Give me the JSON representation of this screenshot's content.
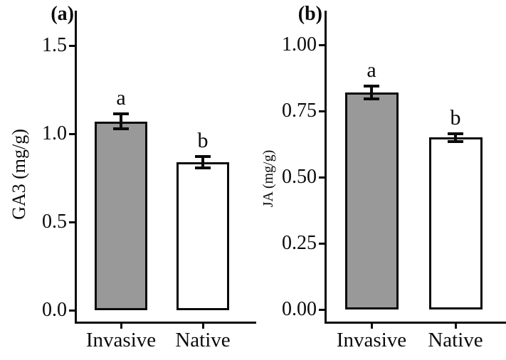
{
  "figure": {
    "background": "#ffffff",
    "line_color": "#0a0a0a"
  },
  "chart_data": [
    {
      "type": "bar",
      "panel_label": "(a)",
      "ylabel": "GA3 (mg/g)",
      "xlabel": "",
      "categories": [
        "Invasive",
        "Native"
      ],
      "values": [
        1.07,
        0.84
      ],
      "errors": [
        0.05,
        0.04
      ],
      "sig_letters": [
        "a",
        "b"
      ],
      "yticks": [
        0.0,
        0.5,
        1.0,
        1.5
      ],
      "ytick_labels": [
        "0.0",
        "0.5",
        "1.0",
        "1.5"
      ],
      "ylim": [
        0,
        1.5
      ],
      "bar_fills": [
        "#999999",
        "#ffffff"
      ],
      "bar_border": "#0a0a0a",
      "legend": "none",
      "grid": "off"
    },
    {
      "type": "bar",
      "panel_label": "(b)",
      "ylabel": "JA (mg/g)",
      "xlabel": "",
      "categories": [
        "Invasive",
        "Native"
      ],
      "values": [
        0.82,
        0.65
      ],
      "errors": [
        0.03,
        0.02
      ],
      "sig_letters": [
        "a",
        "b"
      ],
      "yticks": [
        0.0,
        0.25,
        0.5,
        0.75,
        1.0
      ],
      "ytick_labels": [
        "0.00",
        "0.25",
        "0.50",
        "0.75",
        "1.00"
      ],
      "ylim": [
        0,
        1.0
      ],
      "bar_fills": [
        "#999999",
        "#ffffff"
      ],
      "bar_border": "#0a0a0a",
      "legend": "none",
      "grid": "off"
    }
  ]
}
